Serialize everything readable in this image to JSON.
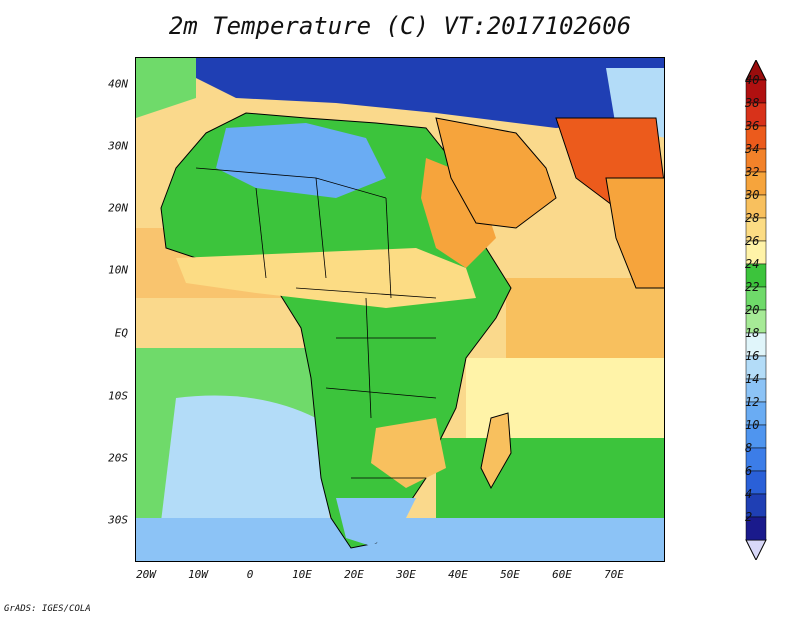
{
  "title": "2m Temperature (C) VT:2017102606",
  "credit": "GrADS: IGES/COLA",
  "y_ticks": [
    "40N",
    "30N",
    "20N",
    "10N",
    "EQ",
    "10S",
    "20S",
    "30S"
  ],
  "x_ticks": [
    "20W",
    "10W",
    "0",
    "10E",
    "20E",
    "30E",
    "40E",
    "50E",
    "60E",
    "70E"
  ],
  "colorbar": {
    "labels": [
      "2",
      "4",
      "6",
      "8",
      "10",
      "12",
      "14",
      "16",
      "18",
      "20",
      "22",
      "24",
      "26",
      "28",
      "30",
      "32",
      "34",
      "36",
      "38",
      "40"
    ],
    "colors": [
      "#1a1a8c",
      "#1f3fb4",
      "#2a60d8",
      "#3c7de8",
      "#4f95ef",
      "#6aacf3",
      "#8cc3f6",
      "#b3dcf8",
      "#e0f5fa",
      "#a6ea96",
      "#6fda6a",
      "#3cc43c",
      "#fff3a8",
      "#fcdc84",
      "#f8c05e",
      "#f6a43c",
      "#f2822a",
      "#ec5b1c",
      "#d8321a",
      "#b01010"
    ],
    "under_color": "#d8d8f8",
    "over_color": "#9a0d0d"
  },
  "map": {
    "ocean_colors": {
      "n_atlantic": "#fad98c",
      "gulf_guinea": "#f9c46e",
      "s_atlantic_mid": "#6fda6a",
      "s_atlantic_cold": "#b3dcf8",
      "far_south": "#8cc3f6",
      "indian_north": "#f8c05e",
      "indian_mid": "#fff3a8",
      "indian_south": "#3cc43c",
      "mediterranean": "#2a60d8"
    },
    "land_colors": {
      "sahara_west": "#3cc43c",
      "sahara_cool": "#6aacf3",
      "sahel": "#fcdc84",
      "central": "#3cc43c",
      "east_hot": "#f6a43c",
      "arabia": "#f6a43c",
      "persian": "#ec5b1c",
      "south": "#8cc3f6",
      "zimbabwe": "#f8c05e",
      "europe": "#1f3fb4",
      "asia_cold": "#b3dcf8"
    }
  }
}
